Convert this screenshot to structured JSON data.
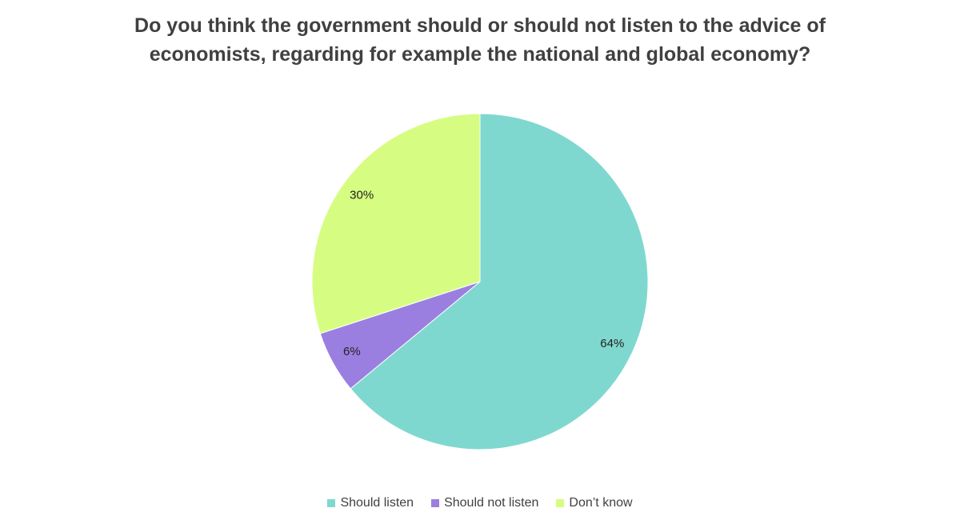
{
  "chart_data": {
    "type": "pie",
    "title": "Do you think the government should or should not listen to the advice of economists, regarding for example the national and global economy?",
    "categories": [
      "Should listen",
      "Should not listen",
      "Don’t know"
    ],
    "values": [
      64,
      6,
      30
    ],
    "value_labels": [
      "64%",
      "6%",
      "30%"
    ],
    "colors": [
      "#7fd8cf",
      "#9b7fe0",
      "#d6fd82"
    ],
    "legend": "bottom"
  }
}
